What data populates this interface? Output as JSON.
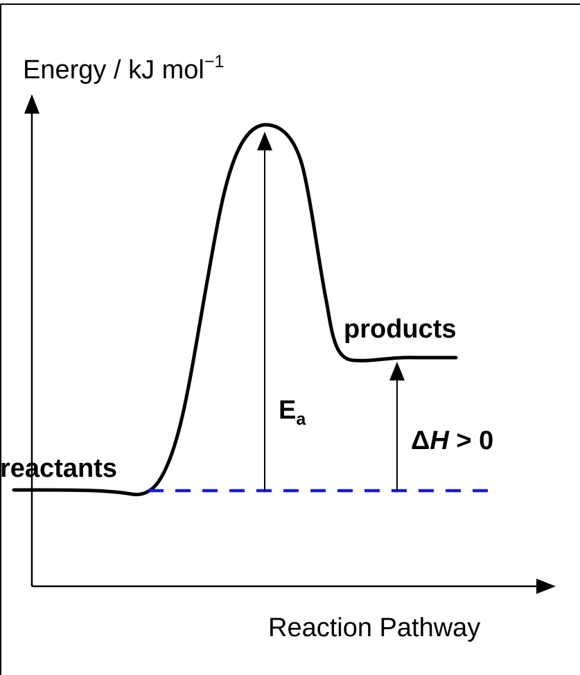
{
  "diagram": {
    "y_axis_label": "Energy / kJ mol",
    "y_axis_unit_superscript": "−1",
    "x_axis_label": "Reaction Pathway",
    "reactants_label": "reactants",
    "products_label": "products",
    "activation_energy": {
      "symbol": "E",
      "subscript": "a"
    },
    "enthalpy_change": {
      "delta": "Δ",
      "symbol": "H",
      "relation": " > 0"
    },
    "colors": {
      "line": "#000000",
      "activation_label": "#1a1adb",
      "baseline_dash": "#1a1adb"
    }
  }
}
